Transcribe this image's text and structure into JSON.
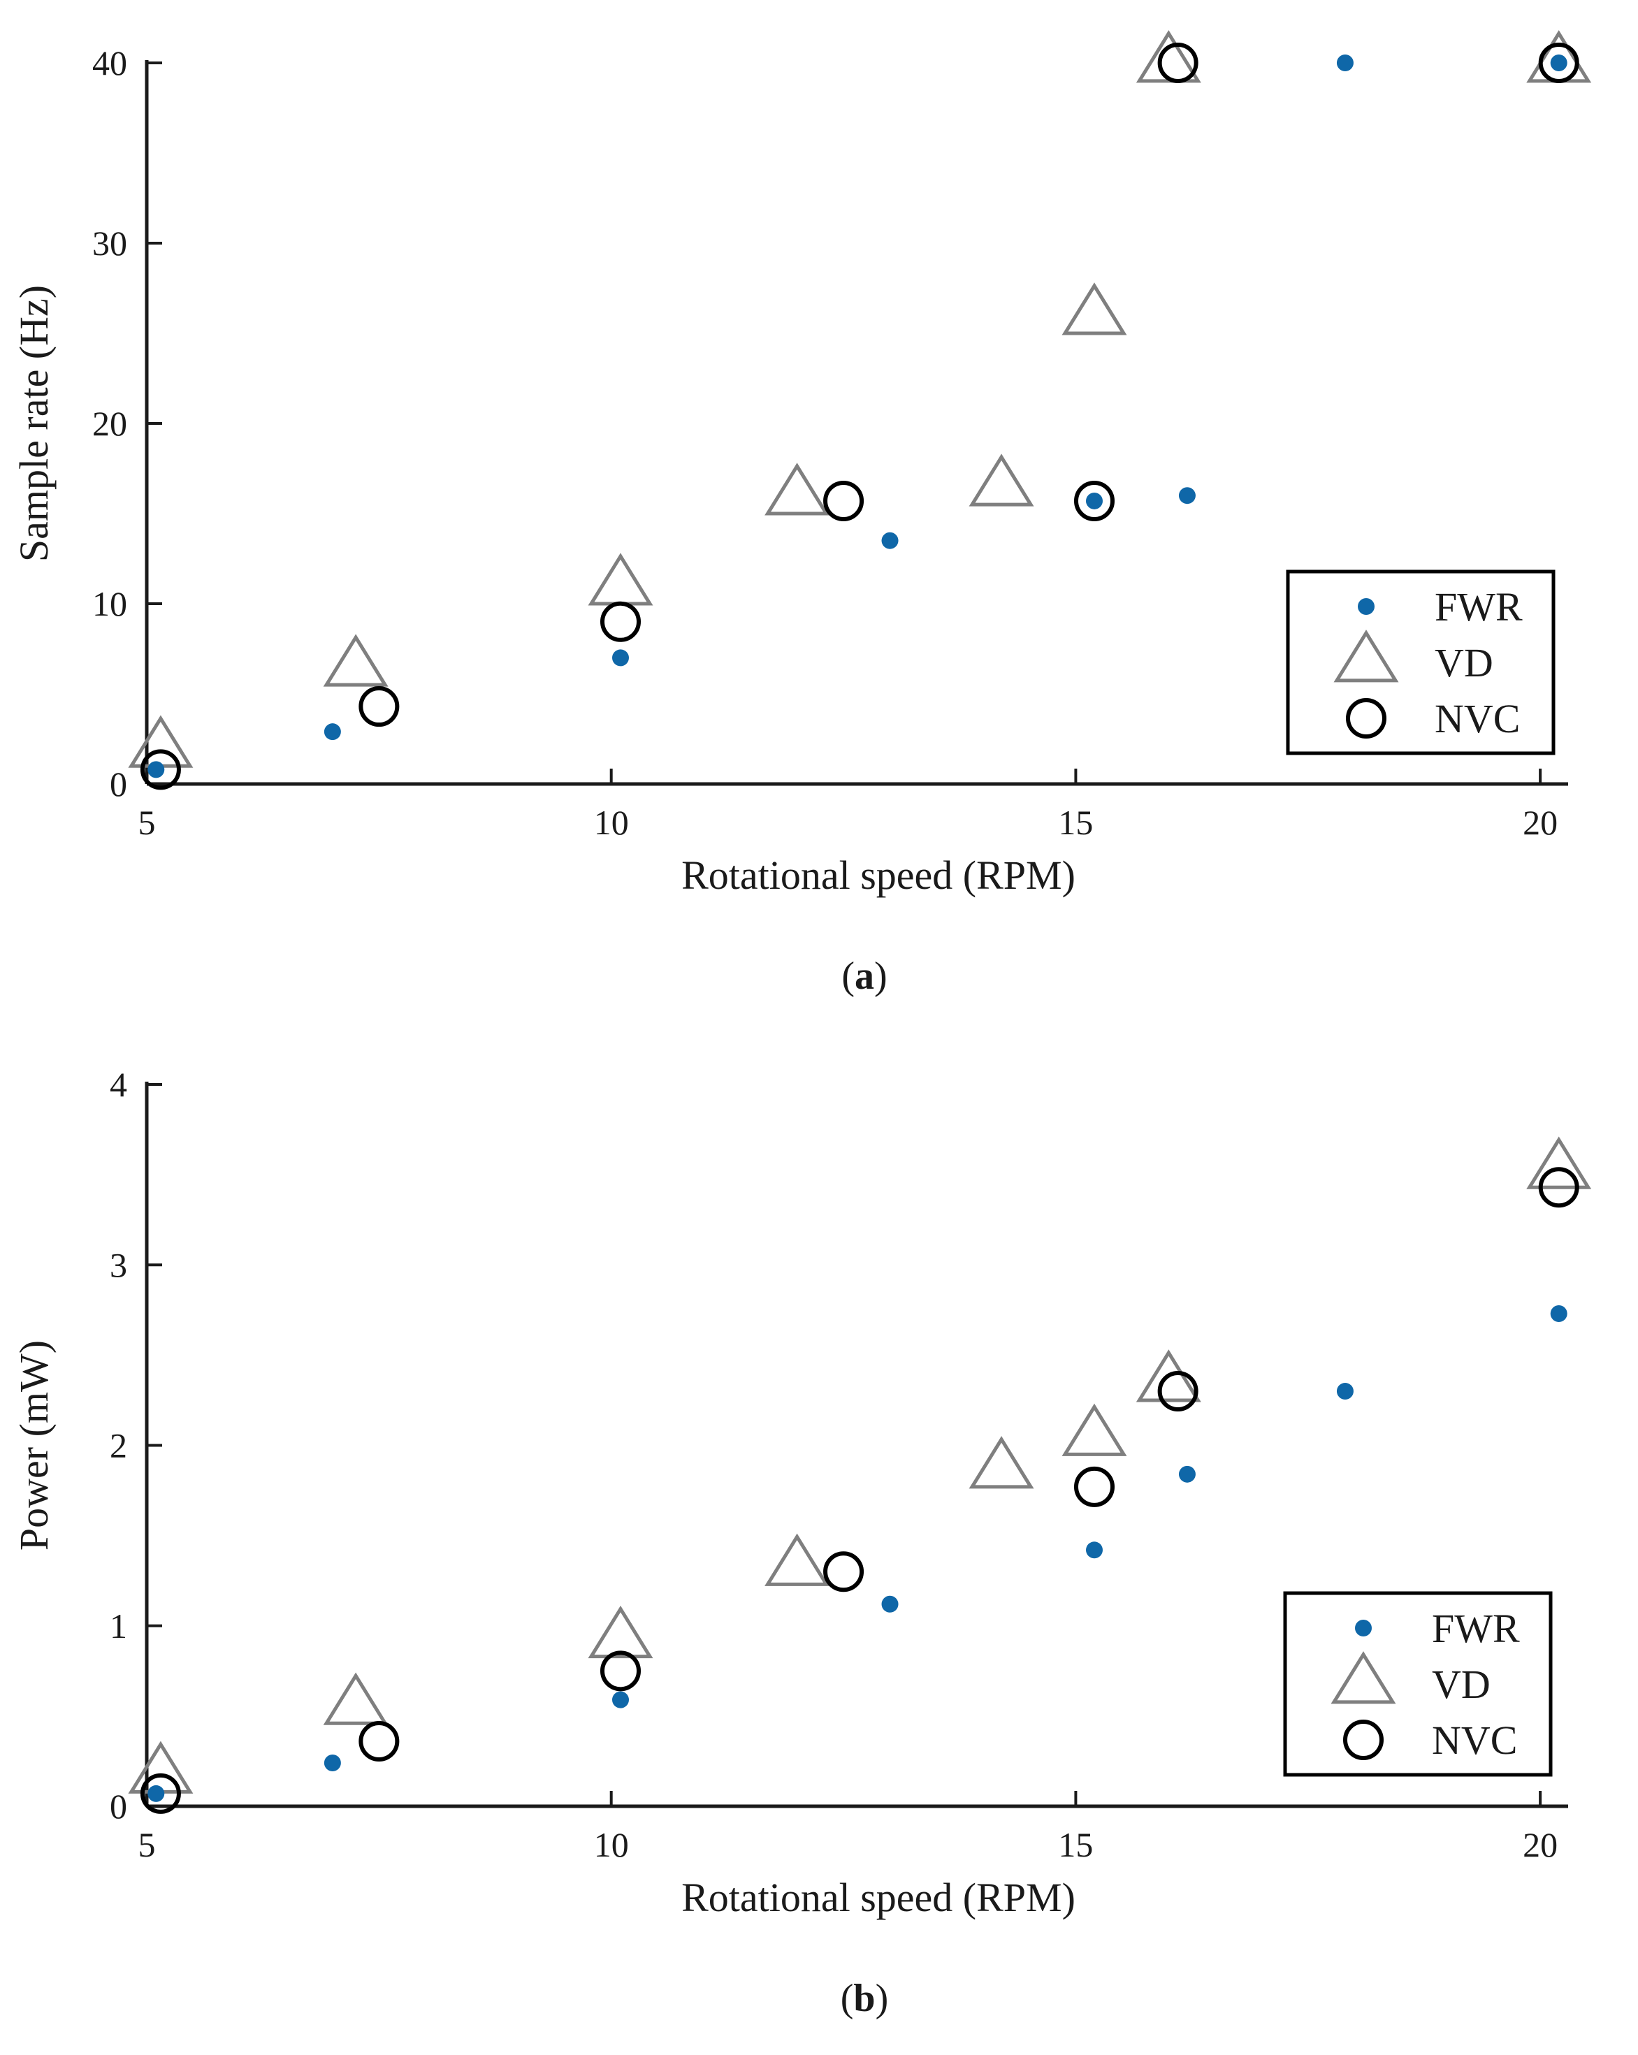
{
  "colors": {
    "fwr": "#0f67a8",
    "vd": "#7f7f7f",
    "nvc": "#000000",
    "axis": "#1a1a1a"
  },
  "chart_data": [
    {
      "type": "scatter",
      "panel_label": "a",
      "xlabel": "Rotational speed (RPM)",
      "ylabel": "Sample rate (Hz)",
      "xlim": [
        5,
        20.3
      ],
      "ylim": [
        0,
        40
      ],
      "xticks": [
        5,
        10,
        15,
        20
      ],
      "yticks": [
        0,
        10,
        20,
        30,
        40
      ],
      "legend_position": "bottom-right",
      "series": [
        {
          "name": "FWR",
          "marker": "dot",
          "x": [
            5.1,
            7.0,
            10.1,
            13.0,
            15.2,
            16.2,
            17.9,
            20.2
          ],
          "y": [
            0.8,
            2.9,
            7.0,
            13.5,
            15.7,
            16.0,
            40.0,
            40.0
          ]
        },
        {
          "name": "VD",
          "marker": "triangle",
          "x": [
            5.15,
            7.25,
            10.1,
            12.0,
            14.2,
            15.2,
            16.0,
            20.2
          ],
          "y": [
            2.0,
            6.5,
            11.0,
            16.0,
            16.5,
            26.0,
            40.0,
            40.0
          ]
        },
        {
          "name": "NVC",
          "marker": "circle",
          "x": [
            5.15,
            7.5,
            10.1,
            12.5,
            15.2,
            16.1,
            20.2
          ],
          "y": [
            0.8,
            4.3,
            9.0,
            15.7,
            15.7,
            40.0,
            40.0
          ]
        }
      ]
    },
    {
      "type": "scatter",
      "panel_label": "b",
      "xlabel": "Rotational speed (RPM)",
      "ylabel": "Power (mW)",
      "xlim": [
        5,
        20.3
      ],
      "ylim": [
        0,
        4
      ],
      "xticks": [
        5,
        10,
        15,
        20
      ],
      "yticks": [
        0,
        1,
        2,
        3,
        4
      ],
      "legend_position": "bottom-right",
      "series": [
        {
          "name": "FWR",
          "marker": "dot",
          "x": [
            5.1,
            7.0,
            10.1,
            13.0,
            15.2,
            16.2,
            17.9,
            20.2
          ],
          "y": [
            0.07,
            0.24,
            0.59,
            1.12,
            1.42,
            1.84,
            2.3,
            2.73
          ]
        },
        {
          "name": "VD",
          "marker": "triangle",
          "x": [
            5.15,
            7.25,
            10.1,
            12.0,
            14.2,
            15.2,
            16.0,
            20.2
          ],
          "y": [
            0.18,
            0.56,
            0.93,
            1.33,
            1.87,
            2.05,
            2.35,
            3.53
          ]
        },
        {
          "name": "NVC",
          "marker": "circle",
          "x": [
            5.15,
            7.5,
            10.1,
            12.5,
            15.2,
            16.1,
            20.2
          ],
          "y": [
            0.07,
            0.36,
            0.75,
            1.3,
            1.77,
            2.3,
            3.43
          ]
        }
      ]
    }
  ]
}
